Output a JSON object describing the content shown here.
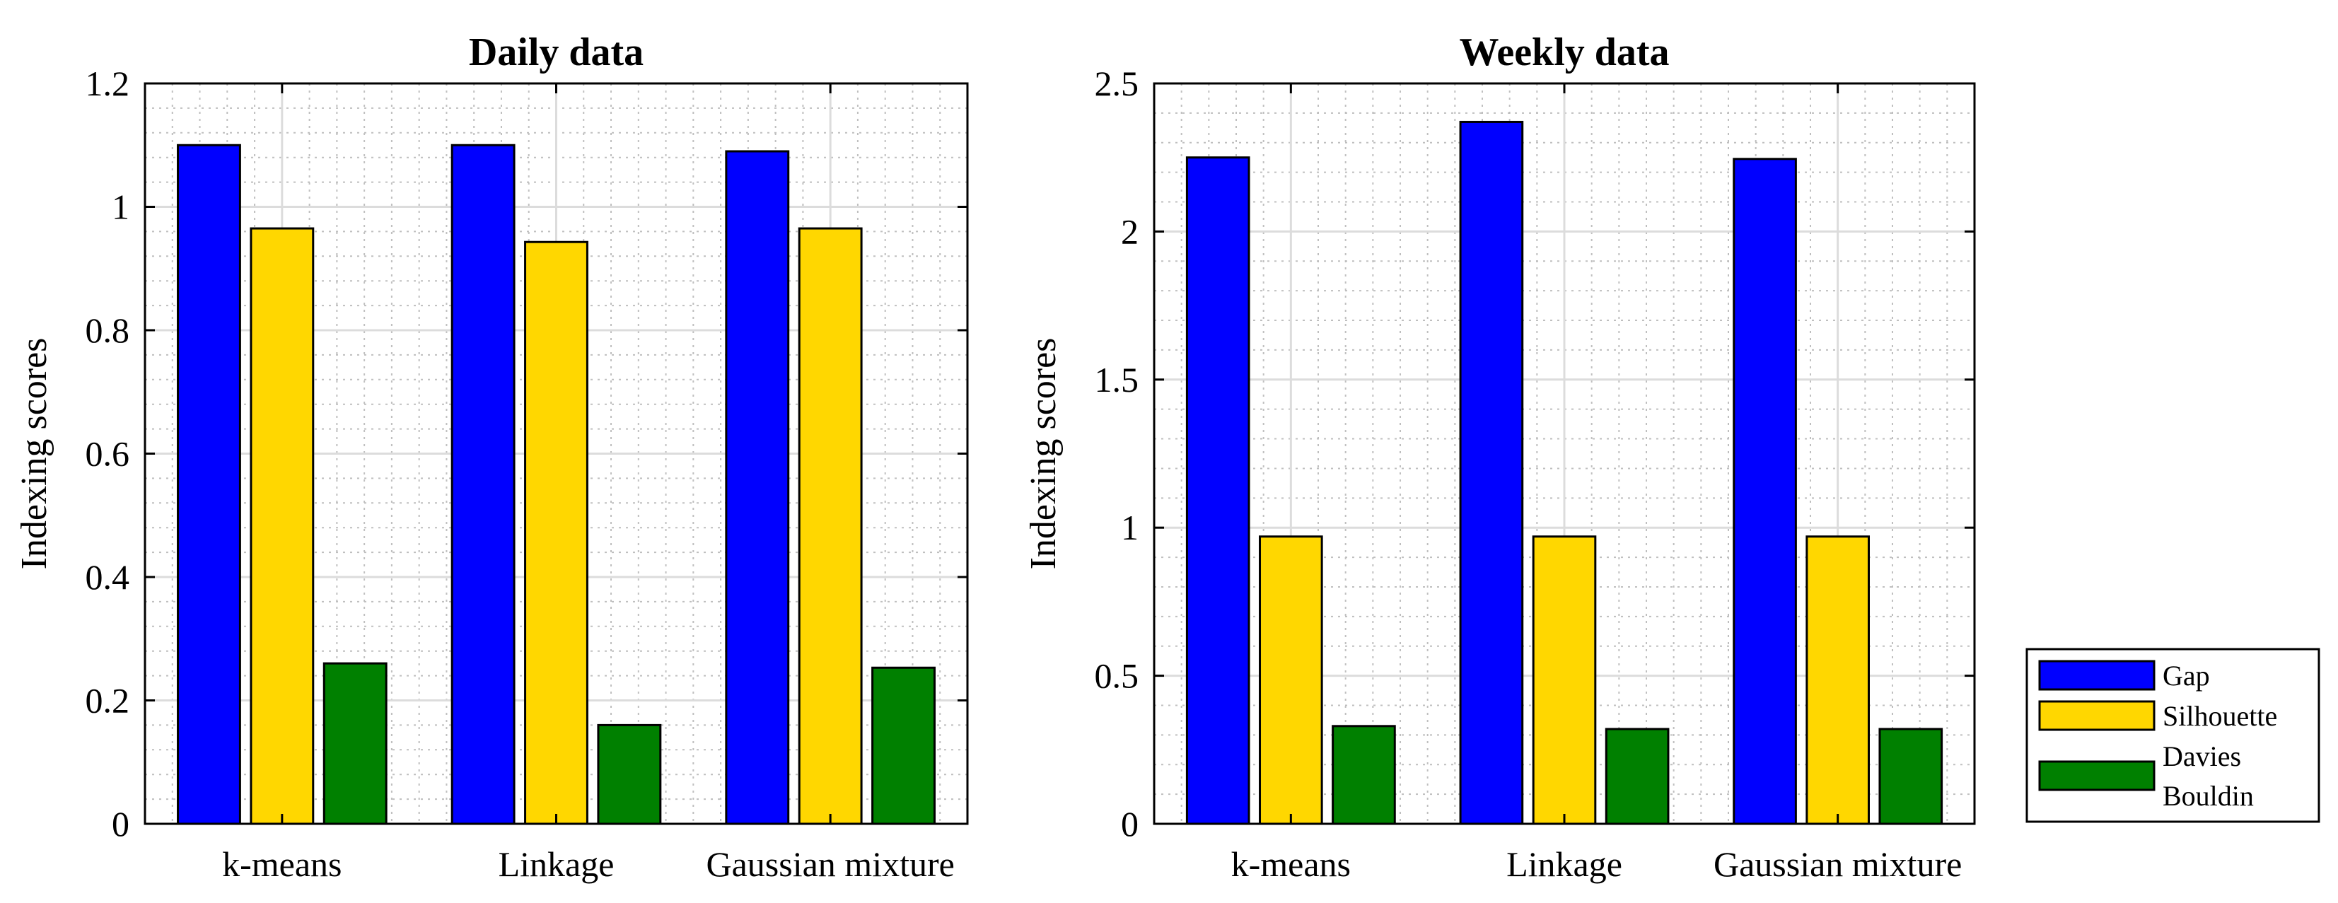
{
  "chart_data": [
    {
      "type": "bar",
      "title": "Daily data",
      "xlabel": "",
      "ylabel": "Indexing scores",
      "ylim": [
        0,
        1.2
      ],
      "yticks": [
        "0",
        "0.2",
        "0.4",
        "0.6",
        "0.8",
        "1",
        "1.2"
      ],
      "categories": [
        "k-means",
        "Linkage",
        "Gaussian mixture"
      ],
      "grid": true,
      "series": [
        {
          "name": "Gap",
          "values": [
            1.1,
            1.1,
            1.09
          ]
        },
        {
          "name": "Silhouette",
          "values": [
            0.965,
            0.943,
            0.965
          ]
        },
        {
          "name": "Davies Bouldin",
          "values": [
            0.26,
            0.16,
            0.253
          ]
        }
      ]
    },
    {
      "type": "bar",
      "title": "Weekly data",
      "xlabel": "",
      "ylabel": "Indexing scores",
      "ylim": [
        0,
        2.5
      ],
      "yticks": [
        "0",
        "0.5",
        "1",
        "1.5",
        "2",
        "2.5"
      ],
      "categories": [
        "k-means",
        "Linkage",
        "Gaussian mixture"
      ],
      "grid": true,
      "series": [
        {
          "name": "Gap",
          "values": [
            2.25,
            2.37,
            2.245
          ]
        },
        {
          "name": "Silhouette",
          "values": [
            0.97,
            0.97,
            0.97
          ]
        },
        {
          "name": "Davies Bouldin",
          "values": [
            0.33,
            0.32,
            0.32
          ]
        }
      ]
    }
  ],
  "legend": {
    "placement": "bottom-right",
    "entries": [
      {
        "series": "Gap",
        "lines": [
          "Gap"
        ]
      },
      {
        "series": "Silhouette",
        "lines": [
          "Silhouette"
        ]
      },
      {
        "series": "Davies Bouldin",
        "lines": [
          "Davies",
          "Bouldin"
        ]
      }
    ]
  },
  "colors": {
    "Gap": "#0000ff",
    "Silhouette": "#ffd700",
    "Davies Bouldin": "#008000",
    "grid_major": "#dcdcdc",
    "grid_minor": "#bfbfbf",
    "axis": "#000000"
  }
}
